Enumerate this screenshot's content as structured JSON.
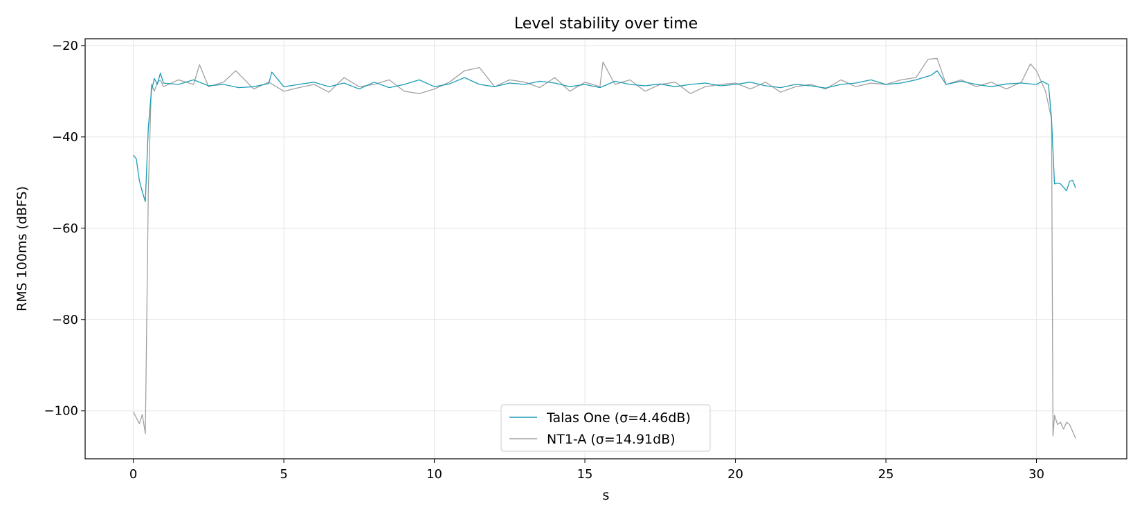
{
  "chart_data": {
    "type": "line",
    "title": "Level stability over time",
    "xlabel": "s",
    "ylabel": "RMS 100ms (dBFS)",
    "xlim": [
      -1.6,
      33.0
    ],
    "ylim": [
      -110.5,
      -18.5
    ],
    "xticks": [
      0,
      5,
      10,
      15,
      20,
      25,
      30
    ],
    "yticks": [
      -100,
      -80,
      -60,
      -40,
      -20
    ],
    "xtick_labels": [
      "0",
      "5",
      "10",
      "15",
      "20",
      "25",
      "30"
    ],
    "ytick_labels": [
      "−100",
      "−80",
      "−60",
      "−40",
      "−20"
    ],
    "grid": true,
    "legend_position": "bottom-center",
    "series": [
      {
        "name": "Talas One (σ=4.46dB)",
        "color": "#1a9cb5",
        "x": [
          0.0,
          0.1,
          0.2,
          0.3,
          0.4,
          0.5,
          0.6,
          0.7,
          0.8,
          0.9,
          1.0,
          1.5,
          2.0,
          2.5,
          3.0,
          3.5,
          4.0,
          4.5,
          4.6,
          5.0,
          5.5,
          6.0,
          6.5,
          7.0,
          7.5,
          8.0,
          8.5,
          9.0,
          9.5,
          10.0,
          10.5,
          11.0,
          11.5,
          12.0,
          12.5,
          13.0,
          13.5,
          14.0,
          14.5,
          15.0,
          15.5,
          16.0,
          16.5,
          17.0,
          17.5,
          18.0,
          18.5,
          19.0,
          19.5,
          20.0,
          20.5,
          21.0,
          21.5,
          22.0,
          22.5,
          23.0,
          23.5,
          24.0,
          24.5,
          25.0,
          25.5,
          26.0,
          26.5,
          26.7,
          27.0,
          27.5,
          28.0,
          28.5,
          29.0,
          29.5,
          30.0,
          30.2,
          30.3,
          30.4,
          30.5,
          30.6,
          30.7,
          30.8,
          31.0,
          31.1,
          31.2,
          31.3
        ],
        "y": [
          -44,
          -44.8,
          -49.5,
          -52,
          -54.2,
          -38,
          -30,
          -27.2,
          -28.5,
          -26,
          -28.2,
          -28.5,
          -27.5,
          -28.8,
          -28.5,
          -29.2,
          -29,
          -28.3,
          -25.8,
          -29,
          -28.5,
          -28,
          -29,
          -28.2,
          -29.5,
          -28,
          -29.2,
          -28.5,
          -27.5,
          -29,
          -28.4,
          -27,
          -28.5,
          -29,
          -28.2,
          -28.5,
          -27.8,
          -28.2,
          -29,
          -28.5,
          -29.2,
          -27.8,
          -28.5,
          -28.8,
          -28.4,
          -29,
          -28.5,
          -28.2,
          -28.8,
          -28.5,
          -28,
          -28.8,
          -29.2,
          -28.5,
          -28.8,
          -29.3,
          -28.5,
          -28.2,
          -27.5,
          -28.5,
          -28.2,
          -27.5,
          -26.5,
          -25.5,
          -28.5,
          -27.8,
          -28.5,
          -29,
          -28.4,
          -28.2,
          -28.5,
          -27.8,
          -28.2,
          -28.5,
          -36,
          -50.3,
          -50.1,
          -50.3,
          -51.8,
          -49.7,
          -49.5,
          -51.2
        ]
      },
      {
        "name": "NT1-A (σ=14.91dB)",
        "color": "#a0a0a0",
        "x": [
          0.0,
          0.1,
          0.2,
          0.3,
          0.4,
          0.5,
          0.6,
          0.7,
          0.8,
          0.9,
          1.0,
          1.5,
          2.0,
          2.2,
          2.5,
          3.0,
          3.4,
          4.0,
          4.5,
          5.0,
          5.5,
          6.0,
          6.5,
          7.0,
          7.5,
          8.0,
          8.5,
          9.0,
          9.5,
          10.0,
          10.5,
          11.0,
          11.5,
          12.0,
          12.5,
          13.0,
          13.5,
          14.0,
          14.5,
          15.0,
          15.5,
          15.6,
          16.0,
          16.5,
          17.0,
          17.5,
          18.0,
          18.5,
          19.0,
          19.5,
          20.0,
          20.5,
          21.0,
          21.5,
          22.0,
          22.5,
          23.0,
          23.5,
          24.0,
          24.5,
          25.0,
          25.5,
          26.0,
          26.4,
          26.7,
          27.0,
          27.5,
          28.0,
          28.5,
          29.0,
          29.5,
          29.8,
          30.0,
          30.3,
          30.5,
          30.55,
          30.6,
          30.7,
          30.8,
          30.9,
          31.0,
          31.1,
          31.2,
          31.3
        ],
        "y": [
          -100.2,
          -101.5,
          -102.8,
          -100.8,
          -105,
          -52,
          -28.5,
          -30,
          -28,
          -27.5,
          -29,
          -27.5,
          -28.5,
          -24.2,
          -29,
          -28,
          -25.5,
          -29.5,
          -28,
          -30,
          -29.2,
          -28.5,
          -30.2,
          -27,
          -29,
          -28.5,
          -27.5,
          -30,
          -30.5,
          -29.5,
          -28,
          -25.5,
          -24.8,
          -29,
          -27.5,
          -28,
          -29.2,
          -27,
          -30,
          -28,
          -29,
          -23.6,
          -28.5,
          -27.5,
          -30,
          -28.5,
          -28,
          -30.5,
          -29,
          -28.5,
          -28.2,
          -29.5,
          -28,
          -30.2,
          -29,
          -28.5,
          -29.5,
          -27.5,
          -29,
          -28.2,
          -28.5,
          -27.5,
          -27,
          -23,
          -22.8,
          -28.5,
          -27.5,
          -29,
          -28,
          -29.5,
          -28,
          -24,
          -25.5,
          -30,
          -36,
          -105.5,
          -101,
          -103,
          -102.5,
          -104,
          -102.5,
          -103,
          -104.5,
          -106
        ]
      }
    ]
  }
}
